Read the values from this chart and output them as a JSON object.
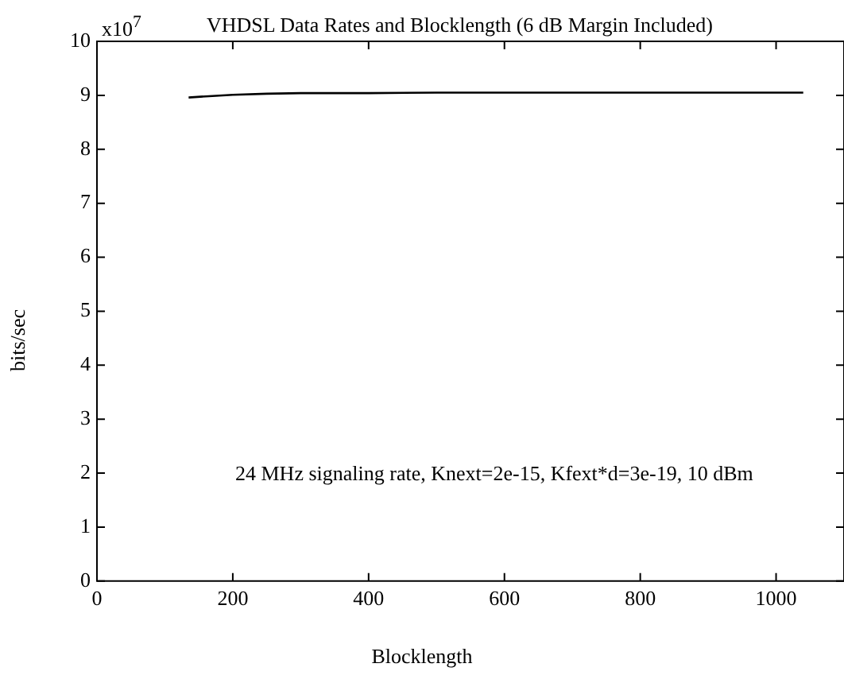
{
  "chart_data": {
    "type": "line",
    "title": "VHDSL Data Rates and Blocklength (6 dB Margin Included)",
    "xlabel": "Blocklength",
    "ylabel": "bits/sec",
    "annotations": [
      "x10$^{7}$",
      "24 MHz signaling rate, Knext=2e-15, Kfext*d=3e-19, 10 dBm"
    ],
    "series": [
      {
        "color": "#000000",
        "x": [
          135,
          160,
          200,
          250,
          300,
          400,
          500,
          600,
          700,
          800,
          900,
          1000,
          1040
        ],
        "values": [
          8.96,
          8.98,
          9.01,
          9.03,
          9.04,
          9.04,
          9.05,
          9.05,
          9.05,
          9.05,
          9.05,
          9.05,
          9.05
        ]
      }
    ],
    "xlim": [
      0,
      1100
    ],
    "xticks": [
      0,
      200,
      400,
      600,
      800,
      1000
    ],
    "ylim": [
      0,
      10
    ],
    "yticks": [
      0,
      1,
      2,
      3,
      4,
      5,
      6,
      7,
      8,
      9,
      10
    ],
    "grid": false,
    "legend": false,
    "marker": "none",
    "line_style": "solid"
  }
}
